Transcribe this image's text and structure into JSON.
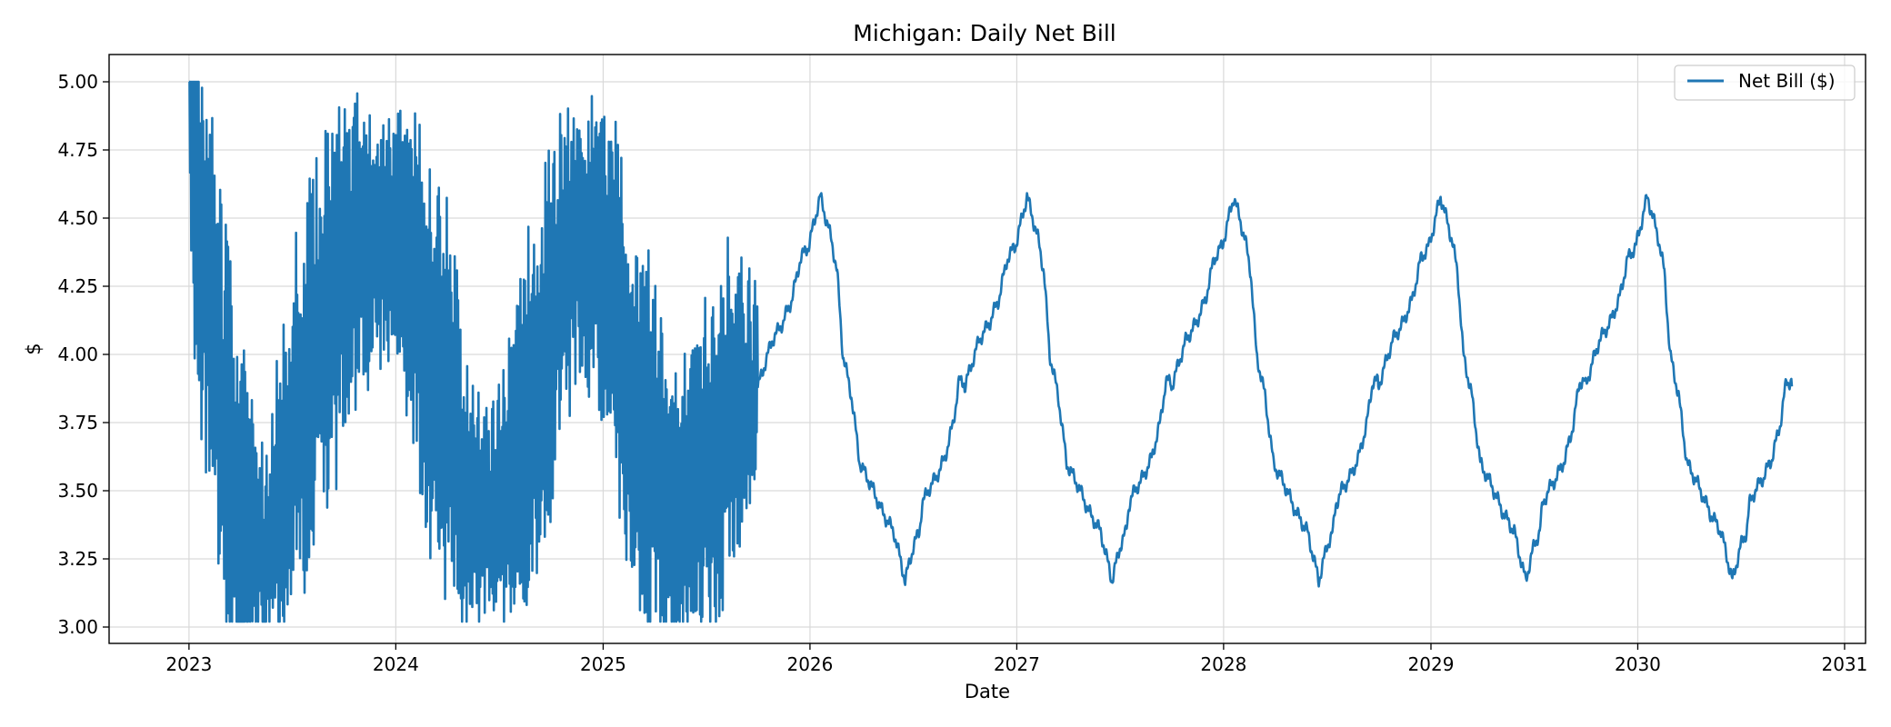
{
  "chart_data": {
    "type": "line",
    "title": "Michigan: Daily Net Bill",
    "xlabel": "Date",
    "ylabel": "$",
    "xlim": [
      "2022-08-13",
      "2031-02-07"
    ],
    "ylim": [
      2.94,
      5.1
    ],
    "x_ticks": [
      "2023",
      "2024",
      "2025",
      "2026",
      "2027",
      "2028",
      "2029",
      "2030",
      "2031"
    ],
    "y_ticks": [
      "3.00",
      "3.25",
      "3.50",
      "3.75",
      "4.00",
      "4.25",
      "4.50",
      "4.75",
      "5.00"
    ],
    "grid": true,
    "legend_position": "top-right",
    "series": [
      {
        "name": "Net Bill ($)",
        "color": "#1f77b4",
        "segments": [
          {
            "description": "historical daily values",
            "x_start": "2023-01-01",
            "x_end": "2025-09-30",
            "x": [
              "2023-01-01",
              "2023-01-05",
              "2023-01-10",
              "2023-01-15",
              "2023-01-20",
              "2023-02-01",
              "2023-02-15",
              "2023-03-01",
              "2023-03-15",
              "2023-04-01",
              "2023-04-15",
              "2023-05-01",
              "2023-05-15",
              "2023-06-01",
              "2023-06-15",
              "2023-07-01",
              "2023-07-15",
              "2023-08-01",
              "2023-08-15",
              "2023-09-01",
              "2023-09-15",
              "2023-10-01",
              "2023-10-15",
              "2023-11-01",
              "2023-11-15",
              "2023-12-01",
              "2023-12-15",
              "2024-01-01",
              "2024-01-15",
              "2024-02-01",
              "2024-02-15",
              "2024-03-01",
              "2024-03-15",
              "2024-04-01",
              "2024-04-15",
              "2024-05-01",
              "2024-05-15",
              "2024-06-01",
              "2024-06-15",
              "2024-07-01",
              "2024-07-15",
              "2024-08-01",
              "2024-08-15",
              "2024-09-01",
              "2024-09-15",
              "2024-10-01",
              "2024-10-15",
              "2024-11-01",
              "2024-11-15",
              "2024-12-01",
              "2024-12-15",
              "2025-01-01",
              "2025-01-15",
              "2025-02-01",
              "2025-02-15",
              "2025-03-01",
              "2025-03-15",
              "2025-04-01",
              "2025-04-15",
              "2025-05-01",
              "2025-05-15",
              "2025-06-01",
              "2025-06-15",
              "2025-07-01",
              "2025-07-15",
              "2025-08-01",
              "2025-08-15",
              "2025-09-01",
              "2025-09-15",
              "2025-09-30"
            ],
            "center": [
              4.95,
              4.85,
              4.7,
              4.6,
              4.5,
              4.3,
              4.0,
              3.8,
              3.7,
              3.5,
              3.4,
              3.3,
              3.3,
              3.4,
              3.5,
              3.7,
              3.8,
              3.9,
              4.0,
              4.1,
              4.2,
              4.3,
              4.35,
              4.4,
              4.4,
              4.45,
              4.45,
              4.5,
              4.4,
              4.3,
              4.2,
              4.0,
              3.9,
              3.8,
              3.7,
              3.5,
              3.45,
              3.4,
              3.4,
              3.45,
              3.5,
              3.6,
              3.7,
              3.8,
              3.9,
              4.1,
              4.2,
              4.35,
              4.4,
              4.4,
              4.4,
              4.3,
              4.2,
              4.1,
              3.9,
              3.8,
              3.7,
              3.6,
              3.5,
              3.45,
              3.45,
              3.5,
              3.5,
              3.55,
              3.6,
              3.7,
              3.75,
              3.8,
              3.85,
              3.9
            ],
            "spread": [
              0.3,
              0.55,
              0.7,
              0.72,
              0.72,
              0.75,
              0.75,
              0.75,
              0.72,
              0.65,
              0.6,
              0.4,
              0.35,
              0.45,
              0.55,
              0.6,
              0.65,
              0.7,
              0.72,
              0.72,
              0.7,
              0.6,
              0.55,
              0.5,
              0.48,
              0.45,
              0.45,
              0.45,
              0.55,
              0.65,
              0.7,
              0.72,
              0.75,
              0.75,
              0.72,
              0.5,
              0.4,
              0.35,
              0.35,
              0.4,
              0.45,
              0.6,
              0.65,
              0.7,
              0.72,
              0.7,
              0.62,
              0.55,
              0.5,
              0.5,
              0.5,
              0.55,
              0.65,
              0.7,
              0.72,
              0.72,
              0.7,
              0.65,
              0.6,
              0.5,
              0.45,
              0.5,
              0.55,
              0.6,
              0.62,
              0.65,
              0.6,
              0.5,
              0.45,
              0.35
            ],
            "noise": "high-frequency daily oscillation within center ± spread, clipped to [3.02, 5.00]"
          },
          {
            "description": "forecast with repeating annual pattern",
            "x_start": "2025-10-01",
            "x_end": "2030-09-30",
            "annual_shape": {
              "days": [
                0,
                25,
                45,
                50,
                60,
                75,
                90,
                110,
                130,
                140,
                150,
                165,
                180,
                200,
                220,
                240,
                260,
                275,
                285,
                290,
                300,
                315,
                330,
                345,
                355
              ],
              "values": [
                3.88,
                4.05,
                4.12,
                4.15,
                4.2,
                4.35,
                4.4,
                4.58,
                4.42,
                4.3,
                4.0,
                3.85,
                3.6,
                3.52,
                3.42,
                3.35,
                3.17,
                3.3,
                3.35,
                3.45,
                3.5,
                3.55,
                3.62,
                3.75,
                3.9
              ]
            },
            "note": "one cycle runs from October 1 to the following September 30; peak 4.58 near January 1, low 3.17 near mid-June"
          }
        ]
      }
    ]
  }
}
